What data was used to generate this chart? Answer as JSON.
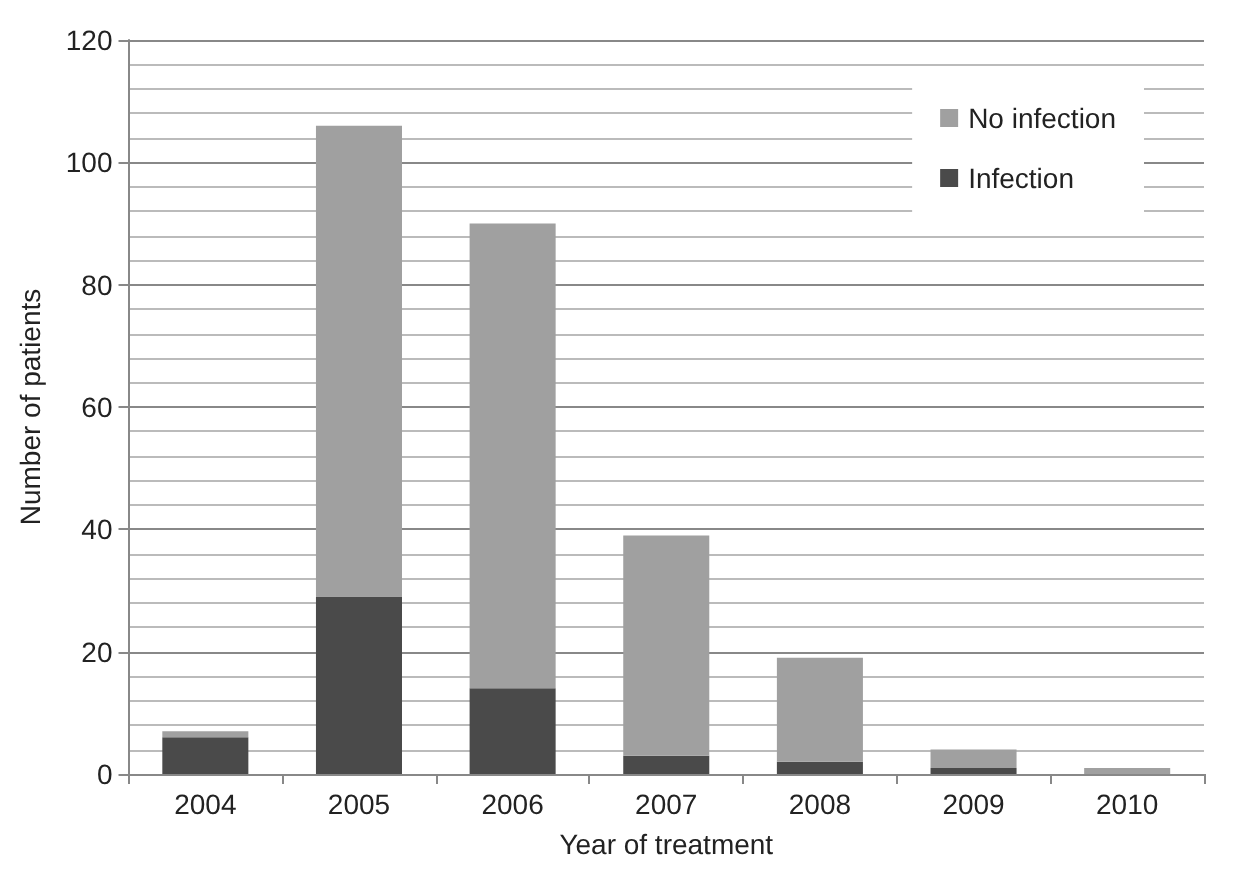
{
  "chart_data": {
    "type": "bar",
    "xlabel": "Year of treatment",
    "ylabel": "Number of patients",
    "categories": [
      "2004",
      "2005",
      "2006",
      "2007",
      "2008",
      "2009",
      "2010"
    ],
    "series": [
      {
        "name": "Infection",
        "color": "#4a4a4a",
        "values": [
          6,
          29,
          14,
          3,
          2,
          1,
          0
        ]
      },
      {
        "name": "No infection",
        "color": "#a0a0a0",
        "values": [
          1,
          77,
          76,
          36,
          17,
          3,
          1
        ]
      }
    ],
    "stacked": true,
    "ylim": [
      0,
      120
    ],
    "yticks": [
      0,
      20,
      40,
      60,
      80,
      100,
      120
    ],
    "grid": "y",
    "legend": "top right"
  }
}
